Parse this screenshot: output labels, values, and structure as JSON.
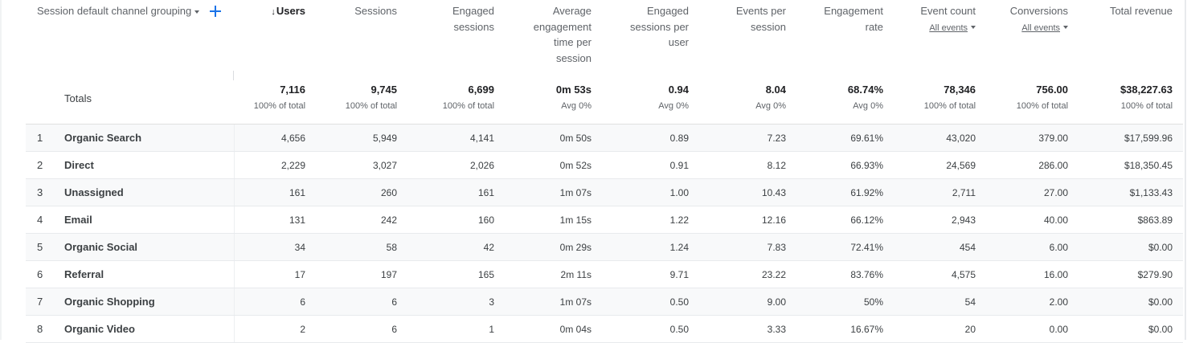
{
  "dimension_header": "Session default channel grouping",
  "columns": [
    {
      "label_lines": [
        "Users"
      ],
      "sorted_desc": true,
      "sub": ""
    },
    {
      "label_lines": [
        "Sessions"
      ],
      "sorted_desc": false,
      "sub": ""
    },
    {
      "label_lines": [
        "Engaged",
        "sessions"
      ],
      "sorted_desc": false,
      "sub": ""
    },
    {
      "label_lines": [
        "Average",
        "engagement",
        "time per",
        "session"
      ],
      "sorted_desc": false,
      "sub": ""
    },
    {
      "label_lines": [
        "Engaged",
        "sessions per",
        "user"
      ],
      "sorted_desc": false,
      "sub": ""
    },
    {
      "label_lines": [
        "Events per",
        "session"
      ],
      "sorted_desc": false,
      "sub": ""
    },
    {
      "label_lines": [
        "Engagement",
        "rate"
      ],
      "sorted_desc": false,
      "sub": ""
    },
    {
      "label_lines": [
        "Event count"
      ],
      "sorted_desc": false,
      "sub": "All events"
    },
    {
      "label_lines": [
        "Conversions"
      ],
      "sorted_desc": false,
      "sub": "All events"
    },
    {
      "label_lines": [
        "Total revenue"
      ],
      "sorted_desc": false,
      "sub": ""
    }
  ],
  "sort_arrow": "↓",
  "totals": {
    "label": "Totals",
    "cells": [
      {
        "value": "7,116",
        "sub": "100% of total"
      },
      {
        "value": "9,745",
        "sub": "100% of total"
      },
      {
        "value": "6,699",
        "sub": "100% of total"
      },
      {
        "value": "0m 53s",
        "sub": "Avg 0%"
      },
      {
        "value": "0.94",
        "sub": "Avg 0%"
      },
      {
        "value": "8.04",
        "sub": "Avg 0%"
      },
      {
        "value": "68.74%",
        "sub": "Avg 0%"
      },
      {
        "value": "78,346",
        "sub": "100% of total"
      },
      {
        "value": "756.00",
        "sub": "100% of total"
      },
      {
        "value": "$38,227.63",
        "sub": "100% of total"
      }
    ]
  },
  "rows": [
    {
      "index": "1",
      "name": "Organic Search",
      "values": [
        "4,656",
        "5,949",
        "4,141",
        "0m 50s",
        "0.89",
        "7.23",
        "69.61%",
        "43,020",
        "379.00",
        "$17,599.96"
      ]
    },
    {
      "index": "2",
      "name": "Direct",
      "values": [
        "2,229",
        "3,027",
        "2,026",
        "0m 52s",
        "0.91",
        "8.12",
        "66.93%",
        "24,569",
        "286.00",
        "$18,350.45"
      ]
    },
    {
      "index": "3",
      "name": "Unassigned",
      "values": [
        "161",
        "260",
        "161",
        "1m 07s",
        "1.00",
        "10.43",
        "61.92%",
        "2,711",
        "27.00",
        "$1,133.43"
      ]
    },
    {
      "index": "4",
      "name": "Email",
      "values": [
        "131",
        "242",
        "160",
        "1m 15s",
        "1.22",
        "12.16",
        "66.12%",
        "2,943",
        "40.00",
        "$863.89"
      ]
    },
    {
      "index": "5",
      "name": "Organic Social",
      "values": [
        "34",
        "58",
        "42",
        "0m 29s",
        "1.24",
        "7.83",
        "72.41%",
        "454",
        "6.00",
        "$0.00"
      ]
    },
    {
      "index": "6",
      "name": "Referral",
      "values": [
        "17",
        "197",
        "165",
        "2m 11s",
        "9.71",
        "23.22",
        "83.76%",
        "4,575",
        "16.00",
        "$279.90"
      ]
    },
    {
      "index": "7",
      "name": "Organic Shopping",
      "values": [
        "6",
        "6",
        "3",
        "1m 07s",
        "0.50",
        "9.00",
        "50%",
        "54",
        "2.00",
        "$0.00"
      ]
    },
    {
      "index": "8",
      "name": "Organic Video",
      "values": [
        "2",
        "6",
        "1",
        "0m 04s",
        "0.50",
        "3.33",
        "16.67%",
        "20",
        "0.00",
        "$0.00"
      ]
    }
  ],
  "colors": {
    "accent": "#1a73e8",
    "text": "#3c4043",
    "muted": "#5f6368",
    "stripe": "#f8f9fa"
  },
  "icons": {
    "add_dimension": "plus-icon",
    "dropdown": "caret-down-icon"
  }
}
